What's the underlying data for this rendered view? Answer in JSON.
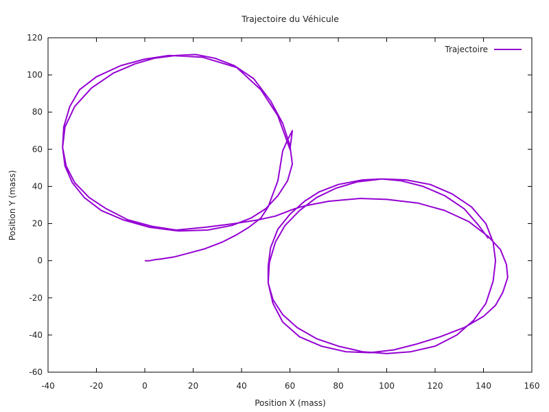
{
  "chart_data": {
    "type": "line",
    "title": "Trajectoire du Véhicule",
    "xlabel": "Position X (mass)",
    "ylabel": "Position Y (mass)",
    "xlim": [
      -40,
      160
    ],
    "ylim": [
      -60,
      120
    ],
    "xticks": [
      "-40",
      "-20",
      "0",
      "20",
      "40",
      "60",
      "80",
      "100",
      "120",
      "140",
      "160"
    ],
    "yticks": [
      "-60",
      "-40",
      "-20",
      "0",
      "20",
      "40",
      "60",
      "80",
      "100",
      "120"
    ],
    "grid": false,
    "legend_position": "top-right",
    "series": [
      {
        "name": "Trajectoire",
        "color": "#9400d3",
        "x": [
          0,
          2,
          4,
          7,
          12,
          18,
          25,
          32,
          38,
          43,
          48,
          51,
          53,
          55,
          56,
          57,
          59,
          61,
          60,
          55,
          48,
          38,
          24,
          10,
          0,
          -10,
          -20,
          -27,
          -31,
          -33.5,
          -34,
          -33,
          -30,
          -25,
          -18,
          -9,
          2,
          14,
          26,
          36,
          44,
          50,
          55,
          59,
          61,
          60,
          57,
          52,
          45,
          37,
          29,
          21,
          13,
          4,
          -4,
          -13,
          -22,
          -29,
          -33,
          -34,
          -32.5,
          -29,
          -23,
          -16,
          -7,
          3,
          13,
          25,
          37,
          47,
          54,
          58,
          60,
          62,
          66,
          76,
          89,
          100,
          113,
          124,
          134,
          142,
          147,
          149.5,
          150,
          148,
          145,
          140,
          132,
          122,
          112,
          103,
          93,
          83,
          73,
          64,
          57,
          53,
          51,
          51.5,
          54,
          58,
          64,
          71,
          79,
          88,
          98,
          108,
          118,
          127,
          135,
          141,
          144,
          145,
          144,
          141,
          136,
          129,
          120,
          110,
          100,
          90,
          80,
          71,
          63,
          57,
          53,
          51,
          51,
          52,
          55,
          60,
          66,
          72,
          80,
          90,
          98,
          106,
          115,
          124,
          132,
          138,
          142
        ],
        "y": [
          0,
          0,
          0.5,
          1,
          2,
          4,
          6.5,
          10,
          14,
          18,
          23,
          29,
          36,
          43,
          51,
          59,
          65,
          70,
          60,
          78,
          92,
          104,
          109.5,
          110.5,
          108.5,
          105,
          99,
          92,
          83,
          72,
          61,
          51,
          42,
          34,
          27,
          22,
          18,
          16,
          16.5,
          19,
          23,
          28,
          35,
          43,
          52,
          62,
          74,
          86,
          98,
          105,
          109,
          111,
          110.5,
          109,
          106,
          101,
          93,
          83,
          72,
          61,
          51,
          42,
          34,
          28,
          22,
          18.5,
          16.5,
          18,
          20,
          22,
          24,
          26,
          27,
          28,
          29.5,
          32,
          33.5,
          33,
          31,
          27,
          21,
          13,
          6,
          -2,
          -9,
          -17,
          -24,
          -30,
          -36,
          -41,
          -45,
          -48,
          -49.5,
          -49,
          -46,
          -41,
          -33,
          -23,
          -12,
          -1,
          10,
          19,
          27,
          34,
          39,
          42.5,
          44,
          43.5,
          41,
          36,
          29,
          20,
          10,
          0,
          -11,
          -23,
          -32,
          -40,
          -46,
          -49,
          -50,
          -49,
          -46,
          -42,
          -36,
          -29,
          -21,
          -12,
          -3,
          7,
          17,
          25,
          32,
          37,
          41,
          43.5,
          44,
          43,
          40,
          35,
          28,
          19,
          12
        ]
      }
    ]
  }
}
